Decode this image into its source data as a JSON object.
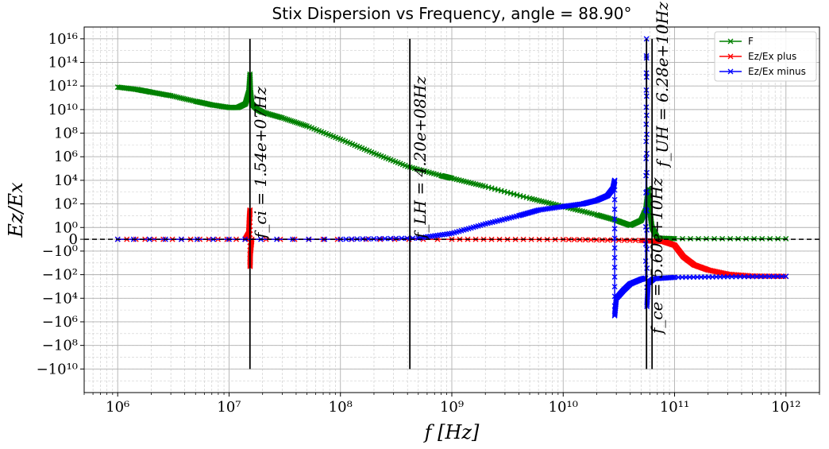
{
  "chart_data": {
    "type": "line",
    "title": "Stix Dispersion vs Frequency, angle = 88.90°",
    "xlabel": "f [Hz]",
    "ylabel": "Ez/Ex",
    "x_scale": "log",
    "y_scale": "symlog",
    "xlim": [
      500000,
      2000000000000
    ],
    "ylim": [
      -1000000000000.0,
      1e+17
    ],
    "grid": true,
    "legend_position": "top-right",
    "x_ticks": [
      {
        "value": 1000000.0,
        "label": "10⁶"
      },
      {
        "value": 10000000.0,
        "label": "10⁷"
      },
      {
        "value": 100000000.0,
        "label": "10⁸"
      },
      {
        "value": 1000000000.0,
        "label": "10⁹"
      },
      {
        "value": 10000000000.0,
        "label": "10¹⁰"
      },
      {
        "value": 100000000000.0,
        "label": "10¹¹"
      },
      {
        "value": 1000000000000.0,
        "label": "10¹²"
      }
    ],
    "y_ticks": [
      {
        "value": 1e+16,
        "label": "10¹⁶"
      },
      {
        "value": 100000000000000.0,
        "label": "10¹⁴"
      },
      {
        "value": 1000000000000.0,
        "label": "10¹²"
      },
      {
        "value": 10000000000.0,
        "label": "10¹⁰"
      },
      {
        "value": 100000000.0,
        "label": "10⁸"
      },
      {
        "value": 1000000.0,
        "label": "10⁶"
      },
      {
        "value": 10000.0,
        "label": "10⁴"
      },
      {
        "value": 100.0,
        "label": "10²"
      },
      {
        "value": 1,
        "label": "10⁰"
      },
      {
        "value": 0,
        "label": "0"
      },
      {
        "value": -1,
        "label": "−10⁰"
      },
      {
        "value": -100.0,
        "label": "−10²"
      },
      {
        "value": -10000.0,
        "label": "−10⁴"
      },
      {
        "value": -1000000.0,
        "label": "−10⁶"
      },
      {
        "value": -100000000.0,
        "label": "−10⁸"
      },
      {
        "value": -10000000000.0,
        "label": "−10¹⁰"
      }
    ],
    "vertical_lines": [
      {
        "x": 15400000,
        "label": "f_ci = 1.54e+07Hz"
      },
      {
        "x": 420000000,
        "label": "f_LH = 4.20e+08Hz"
      },
      {
        "x": 56000000000,
        "label": "f_ce = 5.60e+10Hz"
      },
      {
        "x": 62800000000,
        "label": "f_UH = 6.28e+10Hz"
      }
    ],
    "zero_line": {
      "y": 0
    },
    "series": [
      {
        "name": "F",
        "color": "#008000",
        "marker": "x",
        "points": [
          [
            1000000.0,
            800000000000.0
          ],
          [
            1500000.0,
            500000000000.0
          ],
          [
            2000000.0,
            300000000000.0
          ],
          [
            3000000.0,
            150000000000.0
          ],
          [
            5000000.0,
            50000000000.0
          ],
          [
            7000000.0,
            25000000000.0
          ],
          [
            10000000.0,
            15000000000.0
          ],
          [
            12000000.0,
            15000000000.0
          ],
          [
            14000000.0,
            30000000000.0
          ],
          [
            15000000.0,
            300000000000.0
          ],
          [
            15400000.0,
            10000000000000.0
          ],
          [
            15600000.0,
            300000000000.0
          ],
          [
            16000000.0,
            30000000000.0
          ],
          [
            18000000.0,
            10000000000.0
          ],
          [
            20000000.0,
            6000000000.0
          ],
          [
            30000000.0,
            2000000000.0
          ],
          [
            50000000.0,
            400000000.0
          ],
          [
            100000000.0,
            30000000.0
          ],
          [
            200000000.0,
            2000000.0
          ],
          [
            400000000.0,
            150000.0
          ],
          [
            800000000.0,
            25000.0
          ],
          [
            1000000000.0,
            15000.0
          ],
          [
            2000000000.0,
            3000.0
          ],
          [
            5000000000.0,
            300
          ],
          [
            10000000000.0,
            60
          ],
          [
            20000000000.0,
            12
          ],
          [
            30000000000.0,
            4
          ],
          [
            40000000000.0,
            1.5
          ],
          [
            50000000000.0,
            4
          ],
          [
            55000000000.0,
            30
          ],
          [
            58000000000.0,
            2000.0
          ],
          [
            60000000000.0,
            20
          ],
          [
            62800000000.0,
            1
          ],
          [
            70000000000.0,
            0.1
          ],
          [
            100000000000.0,
            0.05
          ],
          [
            1000000000000.0,
            0.05
          ]
        ]
      },
      {
        "name": "Ez/Ex plus",
        "color": "#ff0000",
        "marker": "x",
        "points": [
          [
            1000000.0,
            0
          ],
          [
            14000000.0,
            0
          ],
          [
            15000000.0,
            0.5
          ],
          [
            15200000.0,
            5
          ],
          [
            15400000.0,
            30
          ],
          [
            15450000.0,
            -20
          ],
          [
            15500000.0,
            -2
          ],
          [
            16000000.0,
            0
          ],
          [
            1000000000.0,
            0
          ],
          [
            10000000000.0,
            -0.02
          ],
          [
            50000000000.0,
            -0.1
          ],
          [
            80000000000.0,
            -0.2
          ],
          [
            100000000000.0,
            -0.5
          ],
          [
            120000000000.0,
            -3
          ],
          [
            150000000000.0,
            -15
          ],
          [
            200000000000.0,
            -40
          ],
          [
            300000000000.0,
            -90
          ],
          [
            500000000000.0,
            -130
          ],
          [
            1000000000000.0,
            -140
          ]
        ]
      },
      {
        "name": "Ez/Ex minus",
        "color": "#0000ff",
        "marker": "x",
        "points": [
          [
            1000000.0,
            0
          ],
          [
            100000000.0,
            0
          ],
          [
            500000000.0,
            0.1
          ],
          [
            1000000000.0,
            0.5
          ],
          [
            2000000000.0,
            2
          ],
          [
            4000000000.0,
            10
          ],
          [
            6000000000.0,
            30
          ],
          [
            10000000000.0,
            60
          ],
          [
            15000000000.0,
            100
          ],
          [
            20000000000.0,
            200
          ],
          [
            25000000000.0,
            500
          ],
          [
            28000000000.0,
            2000.0
          ],
          [
            29000000000.0,
            10000.0
          ],
          [
            29000000000.0,
            -300000.0
          ],
          [
            30000000000.0,
            -10000.0
          ],
          [
            35000000000.0,
            -2000.0
          ],
          [
            40000000000.0,
            -600
          ],
          [
            50000000000.0,
            -250
          ],
          [
            55000000000.0,
            -200
          ],
          [
            56000000000.0,
            1e+16
          ],
          [
            56500000000.0,
            -50000.0
          ],
          [
            58000000000.0,
            -500
          ],
          [
            65000000000.0,
            -220
          ],
          [
            100000000000.0,
            -170
          ],
          [
            300000000000.0,
            -150
          ],
          [
            1000000000000.0,
            -140
          ]
        ]
      }
    ]
  }
}
